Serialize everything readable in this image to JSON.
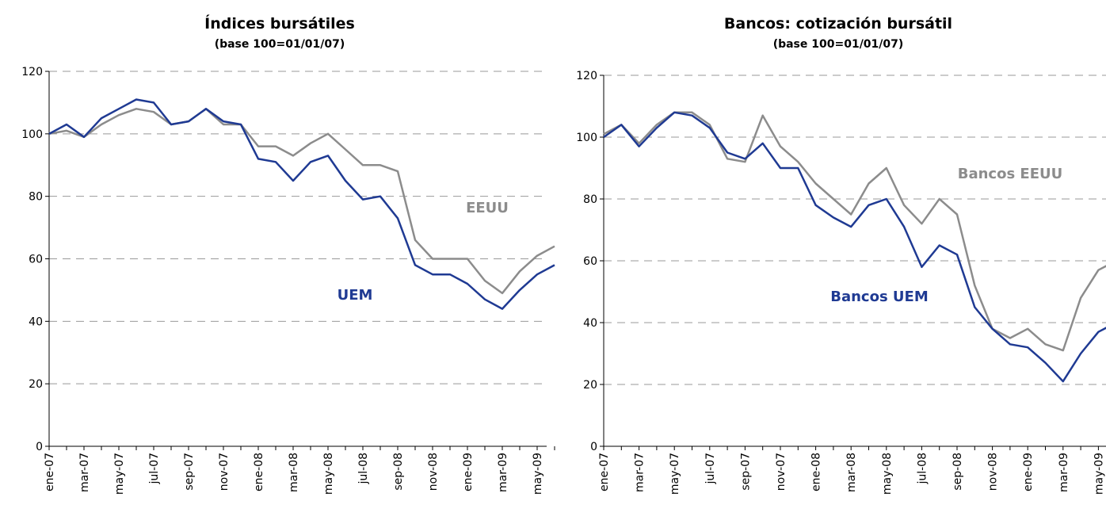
{
  "chart_data": [
    {
      "type": "line",
      "title": "Índices bursátiles",
      "subtitle": "(base 100=01/01/07)",
      "categories": [
        "ene-07",
        null,
        "mar-07",
        null,
        "may-07",
        null,
        "jul-07",
        null,
        "sep-07",
        null,
        "nov-07",
        null,
        "ene-08",
        null,
        "mar-08",
        null,
        "may-08",
        null,
        "jul-08",
        null,
        "sep-08",
        null,
        "nov-08",
        null,
        "ene-09",
        null,
        "mar-09",
        null,
        "may-09",
        null
      ],
      "series": [
        {
          "name": "EEUU",
          "color": "#8c8c8c",
          "values": [
            100,
            101,
            99,
            103,
            106,
            108,
            107,
            103,
            104,
            108,
            103,
            103,
            96,
            96,
            93,
            97,
            100,
            95,
            90,
            90,
            88,
            66,
            60,
            60,
            60,
            53,
            49,
            56,
            61,
            64
          ]
        },
        {
          "name": "UEM",
          "color": "#1f3a93",
          "values": [
            100,
            103,
            99,
            105,
            108,
            111,
            110,
            103,
            104,
            108,
            104,
            103,
            92,
            91,
            85,
            91,
            93,
            85,
            79,
            80,
            73,
            58,
            55,
            55,
            52,
            47,
            44,
            50,
            55,
            58
          ]
        }
      ],
      "ylim": [
        0,
        120
      ],
      "yticks": [
        0,
        20,
        40,
        60,
        80,
        100,
        120
      ],
      "grid": true
    },
    {
      "type": "line",
      "title": "Bancos: cotización bursátil",
      "subtitle": "(base 100=01/01/07)",
      "categories": [
        "ene-07",
        null,
        "mar-07",
        null,
        "may-07",
        null,
        "jul-07",
        null,
        "sep-07",
        null,
        "nov-07",
        null,
        "ene-08",
        null,
        "mar-08",
        null,
        "may-08",
        null,
        "jul-08",
        null,
        "sep-08",
        null,
        "nov-08",
        null,
        "ene-09",
        null,
        "mar-09",
        null,
        "may-09",
        null
      ],
      "series": [
        {
          "name": "Bancos EEUU",
          "color": "#8c8c8c",
          "values": [
            101,
            104,
            98,
            104,
            108,
            108,
            104,
            93,
            92,
            107,
            97,
            92,
            85,
            80,
            75,
            85,
            90,
            78,
            72,
            80,
            75,
            52,
            38,
            35,
            38,
            33,
            31,
            48,
            57,
            60
          ]
        },
        {
          "name": "Bancos UEM",
          "color": "#1f3a93",
          "values": [
            100,
            104,
            97,
            103,
            108,
            107,
            103,
            95,
            93,
            98,
            90,
            90,
            78,
            74,
            71,
            78,
            80,
            71,
            58,
            65,
            62,
            45,
            38,
            33,
            32,
            27,
            21,
            30,
            37,
            40
          ]
        }
      ],
      "ylim": [
        0,
        120
      ],
      "yticks": [
        0,
        20,
        40,
        60,
        80,
        100,
        120
      ],
      "grid": true
    }
  ]
}
